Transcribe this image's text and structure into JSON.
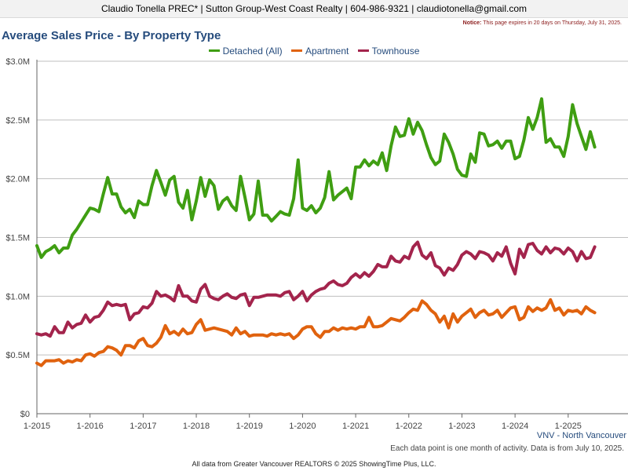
{
  "header": {
    "contact": "Claudio Tonella PREC* | Sutton Group-West Coast Realty | 604-986-9321 | claudiotonella@gmail.com",
    "notice_label": "Notice:",
    "notice_text": "This page expires in 20 days on Thursday, July 31, 2025."
  },
  "colors": {
    "detached": "#3f9e12",
    "apartment": "#e0620e",
    "townhouse": "#a3244c",
    "title": "#264c7d",
    "grid": "#bfbfbf"
  },
  "chart_data": {
    "type": "line",
    "title": "Average Sales Price - By Property Type",
    "x_start": "2015-01",
    "x_end": "2025-06",
    "xlabel": "",
    "ylabel": "",
    "ylim": [
      0,
      3000000
    ],
    "yticks": [
      "$0",
      "$0.5M",
      "$1.0M",
      "$1.5M",
      "$2.0M",
      "$2.5M",
      "$3.0M"
    ],
    "xticks": [
      "1-2015",
      "1-2016",
      "1-2017",
      "1-2018",
      "1-2019",
      "1-2020",
      "1-2021",
      "1-2022",
      "1-2023",
      "1-2024",
      "1-2025"
    ],
    "grid": true,
    "legend": "top",
    "series": [
      {
        "name": "Detached (All)",
        "color": "#3f9e12",
        "values": [
          1.43,
          1.33,
          1.38,
          1.4,
          1.43,
          1.37,
          1.41,
          1.41,
          1.52,
          1.57,
          1.63,
          1.69,
          1.75,
          1.74,
          1.72,
          1.87,
          2.01,
          1.87,
          1.87,
          1.76,
          1.71,
          1.74,
          1.67,
          1.81,
          1.78,
          1.78,
          1.94,
          2.07,
          1.97,
          1.86,
          1.99,
          2.02,
          1.8,
          1.75,
          1.9,
          1.65,
          1.81,
          2.01,
          1.85,
          1.99,
          1.94,
          1.74,
          1.81,
          1.84,
          1.77,
          1.73,
          2.02,
          1.84,
          1.65,
          1.7,
          1.98,
          1.69,
          1.69,
          1.64,
          1.68,
          1.72,
          1.7,
          1.69,
          1.83,
          2.16,
          1.75,
          1.73,
          1.77,
          1.71,
          1.75,
          1.84,
          2.06,
          1.82,
          1.86,
          1.89,
          1.92,
          1.83,
          2.1,
          2.1,
          2.16,
          2.11,
          2.15,
          2.12,
          2.22,
          2.07,
          2.28,
          2.44,
          2.36,
          2.37,
          2.51,
          2.38,
          2.48,
          2.41,
          2.29,
          2.18,
          2.12,
          2.15,
          2.38,
          2.31,
          2.21,
          2.08,
          2.03,
          2.02,
          2.21,
          2.14,
          2.39,
          2.38,
          2.28,
          2.29,
          2.32,
          2.26,
          2.32,
          2.32,
          2.17,
          2.19,
          2.33,
          2.52,
          2.42,
          2.52,
          2.68,
          2.31,
          2.34,
          2.27,
          2.27,
          2.19,
          2.36,
          2.63,
          2.47,
          2.36,
          2.25,
          2.4,
          2.27
        ]
      },
      {
        "name": "Apartment",
        "color": "#e0620e",
        "values": [
          0.43,
          0.41,
          0.45,
          0.45,
          0.45,
          0.46,
          0.43,
          0.45,
          0.44,
          0.46,
          0.45,
          0.5,
          0.51,
          0.49,
          0.52,
          0.53,
          0.57,
          0.56,
          0.54,
          0.5,
          0.58,
          0.58,
          0.56,
          0.62,
          0.64,
          0.58,
          0.57,
          0.6,
          0.65,
          0.75,
          0.68,
          0.7,
          0.67,
          0.72,
          0.68,
          0.69,
          0.76,
          0.8,
          0.71,
          0.72,
          0.73,
          0.72,
          0.71,
          0.7,
          0.67,
          0.73,
          0.68,
          0.7,
          0.66,
          0.67,
          0.67,
          0.67,
          0.66,
          0.68,
          0.67,
          0.68,
          0.67,
          0.68,
          0.64,
          0.67,
          0.72,
          0.74,
          0.74,
          0.68,
          0.65,
          0.7,
          0.7,
          0.73,
          0.71,
          0.73,
          0.72,
          0.73,
          0.72,
          0.74,
          0.74,
          0.82,
          0.74,
          0.74,
          0.75,
          0.78,
          0.81,
          0.8,
          0.79,
          0.82,
          0.86,
          0.89,
          0.88,
          0.96,
          0.93,
          0.88,
          0.85,
          0.78,
          0.83,
          0.73,
          0.85,
          0.78,
          0.83,
          0.86,
          0.89,
          0.82,
          0.86,
          0.88,
          0.84,
          0.85,
          0.88,
          0.82,
          0.86,
          0.9,
          0.91,
          0.8,
          0.82,
          0.91,
          0.87,
          0.9,
          0.88,
          0.9,
          0.97,
          0.88,
          0.9,
          0.84,
          0.88,
          0.87,
          0.88,
          0.85,
          0.91,
          0.88,
          0.86
        ]
      },
      {
        "name": "Townhouse",
        "color": "#a3244c",
        "values": [
          0.68,
          0.67,
          0.68,
          0.66,
          0.74,
          0.69,
          0.69,
          0.78,
          0.73,
          0.76,
          0.77,
          0.84,
          0.78,
          0.82,
          0.83,
          0.88,
          0.95,
          0.92,
          0.93,
          0.92,
          0.93,
          0.8,
          0.85,
          0.86,
          0.91,
          0.9,
          0.94,
          1.04,
          1.0,
          1.01,
          0.99,
          0.96,
          1.09,
          1.0,
          1.0,
          0.96,
          0.95,
          1.06,
          1.1,
          1.0,
          0.98,
          0.97,
          1.0,
          1.02,
          0.99,
          0.98,
          1.01,
          1.02,
          0.92,
          0.99,
          0.99,
          1.0,
          1.01,
          1.01,
          1.01,
          1.0,
          1.03,
          1.04,
          0.97,
          1.0,
          1.04,
          0.96,
          1.01,
          1.04,
          1.06,
          1.07,
          1.11,
          1.13,
          1.1,
          1.09,
          1.11,
          1.16,
          1.19,
          1.16,
          1.2,
          1.17,
          1.21,
          1.27,
          1.25,
          1.25,
          1.34,
          1.3,
          1.29,
          1.34,
          1.32,
          1.42,
          1.46,
          1.35,
          1.32,
          1.37,
          1.26,
          1.24,
          1.18,
          1.24,
          1.22,
          1.27,
          1.35,
          1.38,
          1.36,
          1.32,
          1.38,
          1.37,
          1.35,
          1.3,
          1.37,
          1.34,
          1.42,
          1.28,
          1.19,
          1.4,
          1.33,
          1.44,
          1.45,
          1.39,
          1.36,
          1.42,
          1.37,
          1.41,
          1.4,
          1.36,
          1.41,
          1.38,
          1.3,
          1.38,
          1.32,
          1.33,
          1.42
        ]
      }
    ]
  },
  "footer": {
    "region": "VNV - North Vancouver",
    "note": "Each data point is one month of activity. Data is from July 10, 2025.",
    "source": "All data from Greater Vancouver REALTORS © 2025 ShowingTime Plus, LLC."
  }
}
